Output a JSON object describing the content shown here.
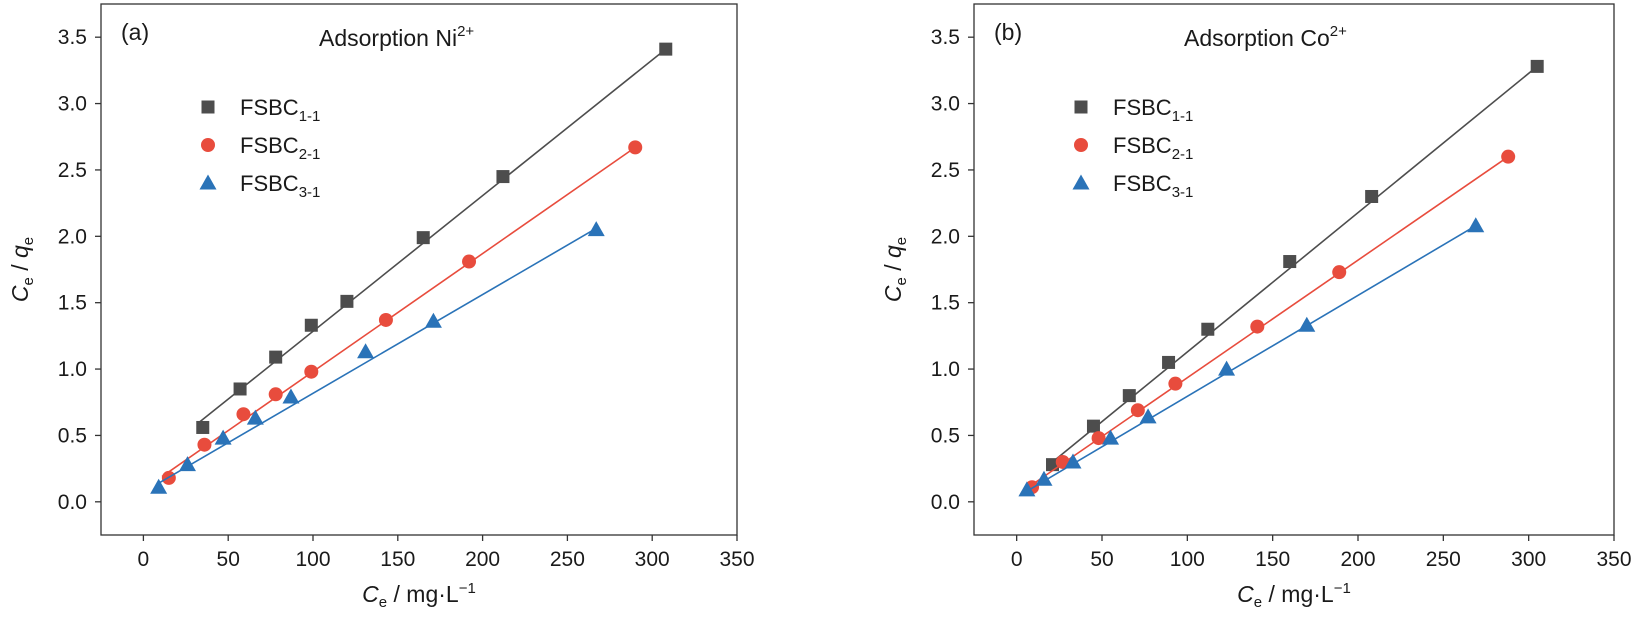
{
  "chart_data": [
    {
      "type": "scatter",
      "panel_label": "(a)",
      "title": "Adsorption Ni",
      "title_sup": "2+",
      "xlabel": {
        "main": "C",
        "sub": "e",
        "rest": " / mg·L",
        "sup": "−1"
      },
      "ylabel": {
        "c": "C",
        "c_sub": "e",
        "slash": " / ",
        "q": "q",
        "q_sub": "e"
      },
      "xlim": [
        -25,
        350
      ],
      "ylim": [
        -0.25,
        3.75
      ],
      "xticks": [
        0,
        50,
        100,
        150,
        200,
        250,
        300,
        350
      ],
      "xtick_labels": [
        "0",
        "50",
        "100",
        "150",
        "200",
        "250",
        "300",
        "350"
      ],
      "yticks": [
        0.0,
        0.5,
        1.0,
        1.5,
        2.0,
        2.5,
        3.0,
        3.5
      ],
      "ytick_labels": [
        "0.0",
        "0.5",
        "1.0",
        "1.5",
        "2.0",
        "2.5",
        "3.0",
        "3.5"
      ],
      "legend_position": "upper-left",
      "series": [
        {
          "name": "FSBC",
          "name_sub": "1-1",
          "marker": "square",
          "color": "#4d4d4d",
          "points": [
            [
              35,
              0.56
            ],
            [
              57,
              0.85
            ],
            [
              78,
              1.09
            ],
            [
              99,
              1.33
            ],
            [
              120,
              1.51
            ],
            [
              165,
              1.99
            ],
            [
              212,
              2.45
            ],
            [
              308,
              3.41
            ]
          ],
          "fit": [
            [
              33,
              0.6
            ],
            [
              308,
              3.41
            ]
          ]
        },
        {
          "name": "FSBC",
          "name_sub": "2-1",
          "marker": "circle",
          "color": "#e84c3d",
          "points": [
            [
              15,
              0.18
            ],
            [
              36,
              0.43
            ],
            [
              59,
              0.66
            ],
            [
              78,
              0.81
            ],
            [
              99,
              0.98
            ],
            [
              143,
              1.37
            ],
            [
              192,
              1.81
            ],
            [
              290,
              2.67
            ]
          ],
          "fit": [
            [
              11,
              0.19
            ],
            [
              290,
              2.67
            ]
          ]
        },
        {
          "name": "FSBC",
          "name_sub": "3-1",
          "marker": "triangle",
          "color": "#2a73b8",
          "points": [
            [
              9,
              0.11
            ],
            [
              26,
              0.28
            ],
            [
              47,
              0.48
            ],
            [
              66,
              0.63
            ],
            [
              87,
              0.79
            ],
            [
              131,
              1.13
            ],
            [
              171,
              1.36
            ],
            [
              267,
              2.05
            ]
          ],
          "fit": [
            [
              9,
              0.14
            ],
            [
              267,
              2.06
            ]
          ]
        }
      ]
    },
    {
      "type": "scatter",
      "panel_label": "(b)",
      "title": "Adsorption Co",
      "title_sup": "2+",
      "xlabel": {
        "main": "C",
        "sub": "e",
        "rest": " / mg·L",
        "sup": "−1"
      },
      "ylabel": {
        "c": "C",
        "c_sub": "e",
        "slash": " / ",
        "q": "q",
        "q_sub": "e"
      },
      "xlim": [
        -25,
        350
      ],
      "ylim": [
        -0.25,
        3.75
      ],
      "xticks": [
        0,
        50,
        100,
        150,
        200,
        250,
        300,
        350
      ],
      "xtick_labels": [
        "0",
        "50",
        "100",
        "150",
        "200",
        "250",
        "300",
        "350"
      ],
      "yticks": [
        0.0,
        0.5,
        1.0,
        1.5,
        2.0,
        2.5,
        3.0,
        3.5
      ],
      "ytick_labels": [
        "0.0",
        "0.5",
        "1.0",
        "1.5",
        "2.0",
        "2.5",
        "3.0",
        "3.5"
      ],
      "legend_position": "upper-left",
      "series": [
        {
          "name": "FSBC",
          "name_sub": "1-1",
          "marker": "square",
          "color": "#4d4d4d",
          "points": [
            [
              21,
              0.28
            ],
            [
              45,
              0.57
            ],
            [
              66,
              0.8
            ],
            [
              89,
              1.05
            ],
            [
              112,
              1.3
            ],
            [
              160,
              1.81
            ],
            [
              208,
              2.3
            ],
            [
              305,
              3.28
            ]
          ],
          "fit": [
            [
              21,
              0.3
            ],
            [
              305,
              3.28
            ]
          ]
        },
        {
          "name": "FSBC",
          "name_sub": "2-1",
          "marker": "circle",
          "color": "#e84c3d",
          "points": [
            [
              9,
              0.11
            ],
            [
              27,
              0.3
            ],
            [
              48,
              0.48
            ],
            [
              71,
              0.69
            ],
            [
              93,
              0.89
            ],
            [
              141,
              1.32
            ],
            [
              189,
              1.73
            ],
            [
              288,
              2.6
            ]
          ],
          "fit": [
            [
              8,
              0.12
            ],
            [
              288,
              2.6
            ]
          ]
        },
        {
          "name": "FSBC",
          "name_sub": "3-1",
          "marker": "triangle",
          "color": "#2a73b8",
          "points": [
            [
              6,
              0.09
            ],
            [
              16,
              0.17
            ],
            [
              33,
              0.3
            ],
            [
              55,
              0.48
            ],
            [
              77,
              0.64
            ],
            [
              123,
              1.0
            ],
            [
              170,
              1.33
            ],
            [
              269,
              2.08
            ]
          ],
          "fit": [
            [
              6,
              0.08
            ],
            [
              269,
              2.08
            ]
          ]
        }
      ]
    }
  ]
}
